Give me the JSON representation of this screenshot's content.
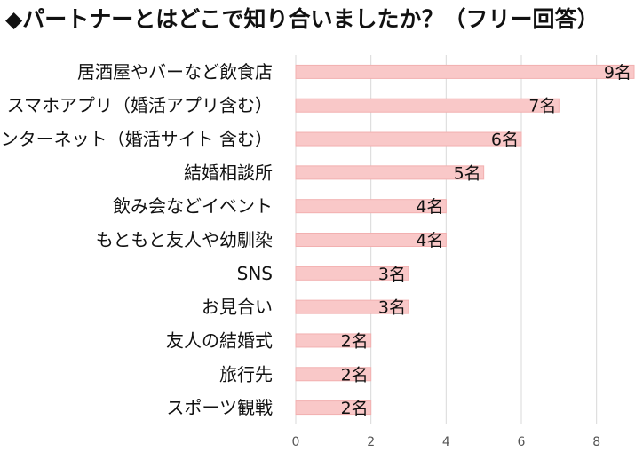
{
  "chart_data": {
    "type": "bar",
    "orientation": "horizontal",
    "title": "◆パートナーとはどこで知り合いましたか？（フリー回答）",
    "categories": [
      "居酒屋やバーなど飲食店",
      "スマホアプリ（婚活アプリ含む）",
      "インターネット（婚活サイト 含む）",
      "結婚相談所",
      "飲み会などイベント",
      "もともと友人や幼馴染",
      "SNS",
      "お見合い",
      "友人の結婚式",
      "旅行先",
      "スポーツ観戦"
    ],
    "values": [
      9,
      7,
      6,
      5,
      4,
      4,
      3,
      3,
      2,
      2,
      2
    ],
    "value_labels": [
      "9名",
      "7名",
      "6名",
      "5名",
      "4名",
      "4名",
      "3名",
      "3名",
      "2名",
      "2名",
      "2名"
    ],
    "x_ticks": [
      "0",
      "2",
      "4",
      "6",
      "8"
    ],
    "xlim": [
      0,
      9
    ],
    "bar_color": "#f9c8c8",
    "bar_edge_color": "#f2b0b0",
    "grid_color": "#d9d9d9",
    "grid": true,
    "legend": "none"
  }
}
